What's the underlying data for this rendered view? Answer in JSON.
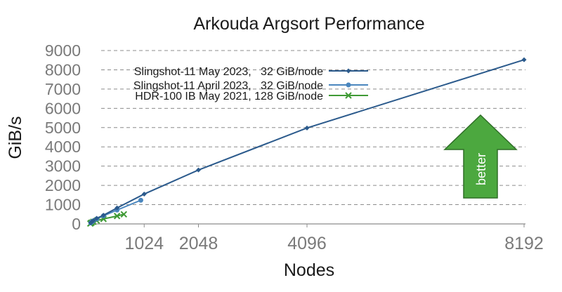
{
  "chart_data": {
    "type": "line",
    "title": "Arkouda Argsort Performance",
    "xlabel": "Nodes",
    "ylabel": "GiB/s",
    "xlim": [
      0,
      8192
    ],
    "ylim": [
      0,
      9000
    ],
    "yticks": [
      0,
      1000,
      2000,
      3000,
      4000,
      5000,
      6000,
      7000,
      8000,
      9000
    ],
    "xticks": [
      1024,
      2048,
      4096,
      8192
    ],
    "grid": "horizontal dashed",
    "legend_position": "top-left",
    "series": [
      {
        "name": "Slingshot-11 May 2023,   32 GiB/node",
        "color": "#2b5a8c",
        "marker": "diamond",
        "x": [
          16,
          32,
          64,
          128,
          256,
          512,
          1024,
          2048,
          4096,
          8192
        ],
        "y": [
          60,
          100,
          170,
          290,
          450,
          830,
          1550,
          2800,
          4980,
          8520
        ]
      },
      {
        "name": "Slingshot-11 April 2023,   32 GiB/node",
        "color": "#4a86be",
        "marker": "circle",
        "x": [
          16,
          32,
          64,
          128,
          256,
          512,
          960
        ],
        "y": [
          55,
          95,
          160,
          260,
          420,
          720,
          1230
        ]
      },
      {
        "name": "HDR-100 IB May 2021, 128 GiB/node",
        "color": "#3f9a35",
        "marker": "x",
        "x": [
          8,
          16,
          32,
          64,
          128,
          256,
          512,
          640
        ],
        "y": [
          20,
          40,
          70,
          110,
          170,
          260,
          410,
          500
        ]
      }
    ],
    "annotation": {
      "text": "better",
      "color": "#4ca83f",
      "stroke": "#2f6e27"
    }
  }
}
